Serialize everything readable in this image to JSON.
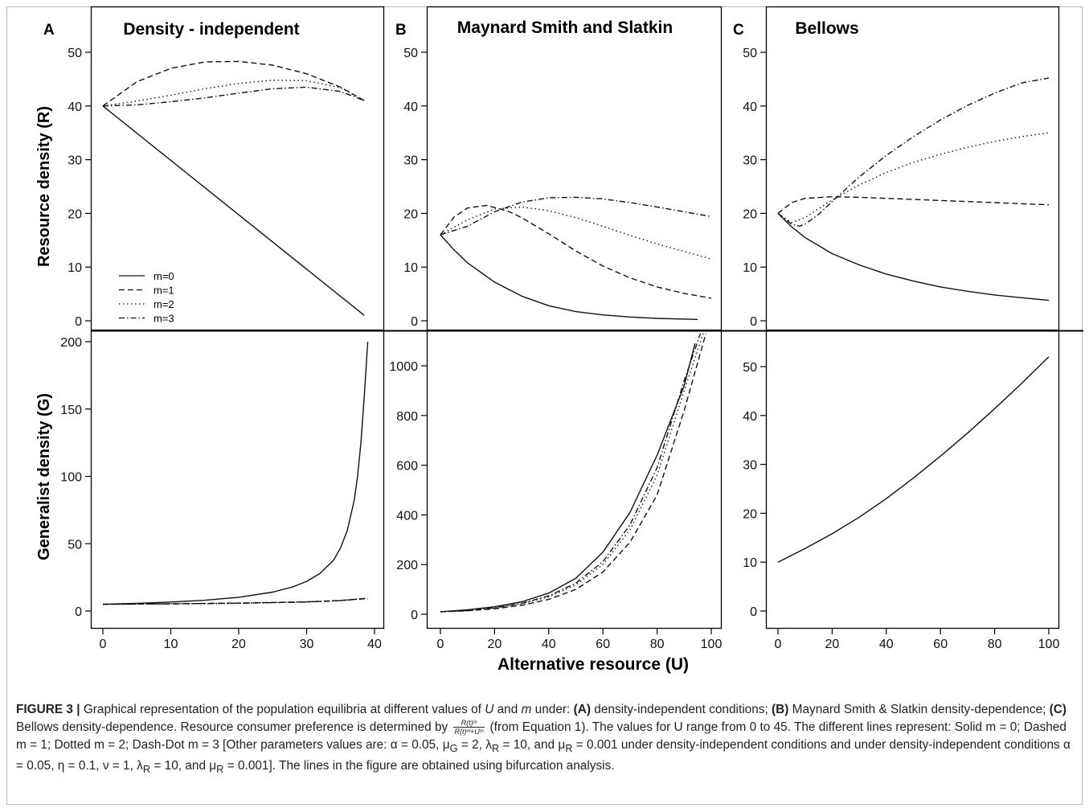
{
  "figure": {
    "legend": [
      "m=0",
      "m=1",
      "m=2",
      "m=3"
    ],
    "x_axis_label": "Alternative resource (U)",
    "y_axis_labels": {
      "top": "Resource density (R)",
      "bottom": "Generalist density (G)"
    }
  },
  "chart_data": [
    {
      "id": "A-top",
      "panel": "A",
      "title": "Density - independent",
      "type": "line",
      "ylabel": "Resource density (R)",
      "xlim": [
        0,
        40
      ],
      "ylim": [
        0,
        50
      ],
      "xticks": [
        0,
        10,
        20,
        30,
        40
      ],
      "yticks": [
        0,
        10,
        20,
        30,
        40,
        50
      ],
      "legend_position": "bottom-left",
      "series": [
        {
          "name": "m=0",
          "style": "solid",
          "x": [
            0,
            38.5
          ],
          "y": [
            40,
            1
          ]
        },
        {
          "name": "m=1",
          "style": "dashed",
          "x": [
            0,
            5,
            10,
            15,
            20,
            25,
            30,
            35,
            38.5
          ],
          "y": [
            40,
            44.5,
            47,
            48.2,
            48.3,
            47.6,
            46,
            43.5,
            41
          ]
        },
        {
          "name": "m=2",
          "style": "dotted",
          "x": [
            0,
            5,
            10,
            15,
            20,
            25,
            30,
            35,
            38.5
          ],
          "y": [
            40,
            40.9,
            42,
            43.2,
            44.2,
            44.8,
            44.7,
            43.4,
            41
          ]
        },
        {
          "name": "m=3",
          "style": "dashdot",
          "x": [
            0,
            5,
            10,
            15,
            20,
            25,
            30,
            35,
            38.5
          ],
          "y": [
            40,
            40.2,
            40.8,
            41.5,
            42.4,
            43.2,
            43.5,
            42.7,
            41
          ]
        }
      ]
    },
    {
      "id": "A-bottom",
      "panel": "A",
      "type": "line",
      "ylabel": "Generalist density (G)",
      "xlabel": "",
      "xlim": [
        0,
        40
      ],
      "ylim": [
        0,
        200
      ],
      "xticks": [
        0,
        10,
        20,
        30,
        40
      ],
      "yticks": [
        0,
        50,
        100,
        150,
        200
      ],
      "series": [
        {
          "name": "m=0",
          "style": "solid",
          "x": [
            0,
            5,
            10,
            15,
            20,
            25,
            28,
            30,
            32,
            34,
            35,
            36,
            37,
            37.5,
            38,
            38.5,
            39
          ],
          "y": [
            5,
            5.7,
            6.7,
            8,
            10.2,
            14,
            18,
            22,
            28,
            38,
            47,
            60,
            82,
            100,
            125,
            160,
            200
          ]
        },
        {
          "name": "m=1",
          "style": "dashed",
          "x": [
            0,
            10,
            20,
            30,
            35,
            39
          ],
          "y": [
            5,
            5.4,
            5.9,
            6.8,
            7.8,
            9.5
          ]
        },
        {
          "name": "m=2",
          "style": "dotted",
          "x": [
            0,
            10,
            20,
            30,
            35,
            39
          ],
          "y": [
            5,
            5.3,
            5.8,
            6.8,
            7.9,
            9.5
          ]
        },
        {
          "name": "m=3",
          "style": "dashdot",
          "x": [
            0,
            10,
            20,
            30,
            35,
            39
          ],
          "y": [
            5,
            5.3,
            5.8,
            6.7,
            7.7,
            9.3
          ]
        }
      ]
    },
    {
      "id": "B-top",
      "panel": "B",
      "title": "Maynard Smith and Slatkin",
      "type": "line",
      "xlim": [
        0,
        100
      ],
      "ylim": [
        0,
        50
      ],
      "xticks": [
        0,
        20,
        40,
        60,
        80,
        100
      ],
      "yticks": [
        0,
        10,
        20,
        30,
        40,
        50
      ],
      "series": [
        {
          "name": "m=0",
          "style": "solid",
          "x": [
            0,
            5,
            10,
            20,
            30,
            40,
            50,
            60,
            70,
            80,
            95
          ],
          "y": [
            16,
            13.2,
            10.8,
            7.2,
            4.6,
            2.8,
            1.7,
            1.1,
            0.7,
            0.45,
            0.25
          ]
        },
        {
          "name": "m=1",
          "style": "dashed",
          "x": [
            0,
            5,
            10,
            17,
            25,
            30,
            40,
            50,
            60,
            70,
            80,
            90,
            100
          ],
          "y": [
            16,
            19.3,
            21,
            21.5,
            20.4,
            19.2,
            16.2,
            13,
            10.2,
            8,
            6.3,
            5.1,
            4.2
          ]
        },
        {
          "name": "m=2",
          "style": "dotted",
          "x": [
            0,
            10,
            20,
            30,
            40,
            50,
            60,
            70,
            80,
            90,
            100
          ],
          "y": [
            16,
            18.8,
            20.8,
            21.2,
            20.5,
            19.2,
            17.6,
            15.9,
            14.3,
            12.9,
            11.5
          ]
        },
        {
          "name": "m=3",
          "style": "dashdot",
          "x": [
            0,
            10,
            20,
            30,
            40,
            50,
            60,
            70,
            80,
            90,
            100
          ],
          "y": [
            16,
            17.6,
            20.3,
            22.1,
            22.9,
            23,
            22.7,
            22,
            21.2,
            20.3,
            19.4
          ]
        }
      ]
    },
    {
      "id": "B-bottom",
      "panel": "B",
      "type": "line",
      "xlim": [
        0,
        100
      ],
      "ylim": [
        0,
        1100
      ],
      "xticks": [
        0,
        20,
        40,
        60,
        80,
        100
      ],
      "yticks": [
        0,
        200,
        400,
        600,
        800,
        1000
      ],
      "series": [
        {
          "name": "m=0",
          "style": "solid",
          "x": [
            0,
            10,
            20,
            30,
            40,
            50,
            60,
            70,
            80,
            90,
            94
          ],
          "y": [
            10,
            18,
            30,
            50,
            85,
            145,
            250,
            410,
            640,
            920,
            1090
          ]
        },
        {
          "name": "m=1",
          "style": "dashed",
          "x": [
            0,
            10,
            20,
            30,
            40,
            50,
            60,
            70,
            80,
            90,
            98
          ],
          "y": [
            10,
            14,
            22,
            36,
            60,
            100,
            170,
            290,
            480,
            820,
            1130
          ]
        },
        {
          "name": "m=2",
          "style": "dotted",
          "x": [
            0,
            10,
            20,
            30,
            40,
            50,
            60,
            70,
            80,
            90,
            97
          ],
          "y": [
            10,
            15,
            25,
            42,
            70,
            118,
            200,
            340,
            560,
            900,
            1130
          ]
        },
        {
          "name": "m=3",
          "style": "dashdot",
          "x": [
            0,
            10,
            20,
            30,
            40,
            50,
            60,
            70,
            80,
            90,
            96
          ],
          "y": [
            10,
            15,
            26,
            44,
            74,
            125,
            212,
            360,
            590,
            940,
            1130
          ]
        }
      ]
    },
    {
      "id": "C-top",
      "panel": "C",
      "title": "Bellows",
      "type": "line",
      "xlim": [
        0,
        100
      ],
      "ylim": [
        0,
        50
      ],
      "xticks": [
        0,
        20,
        40,
        60,
        80,
        100
      ],
      "yticks": [
        0,
        10,
        20,
        30,
        40,
        50
      ],
      "series": [
        {
          "name": "m=0",
          "style": "solid",
          "x": [
            0,
            5,
            10,
            20,
            30,
            40,
            50,
            60,
            70,
            80,
            90,
            100
          ],
          "y": [
            20,
            17.5,
            15.5,
            12.5,
            10.4,
            8.7,
            7.4,
            6.3,
            5.5,
            4.8,
            4.3,
            3.8
          ]
        },
        {
          "name": "m=1",
          "style": "dashed",
          "x": [
            0,
            5,
            10,
            20,
            30,
            40,
            50,
            60,
            70,
            80,
            90,
            100
          ],
          "y": [
            20,
            22,
            22.8,
            23.1,
            23,
            22.8,
            22.6,
            22.4,
            22.2,
            22,
            21.8,
            21.6
          ]
        },
        {
          "name": "m=2",
          "style": "dotted",
          "x": [
            0,
            5,
            10,
            20,
            30,
            40,
            50,
            60,
            70,
            80,
            90,
            100
          ],
          "y": [
            20,
            18.3,
            19.2,
            22.5,
            25.3,
            27.6,
            29.5,
            31,
            32.3,
            33.4,
            34.3,
            35
          ]
        },
        {
          "name": "m=3",
          "style": "dashdot",
          "x": [
            0,
            5,
            8,
            10,
            15,
            20,
            30,
            40,
            50,
            60,
            70,
            80,
            90,
            100
          ],
          "y": [
            20,
            18,
            17.6,
            18,
            19.8,
            22.2,
            26.8,
            30.8,
            34.3,
            37.4,
            40.1,
            42.4,
            44.3,
            45.2
          ]
        }
      ]
    },
    {
      "id": "C-bottom",
      "panel": "C",
      "type": "line",
      "xlim": [
        0,
        100
      ],
      "ylim": [
        0,
        55
      ],
      "xticks": [
        0,
        20,
        40,
        60,
        80,
        100
      ],
      "yticks": [
        0,
        10,
        20,
        30,
        40,
        50
      ],
      "series": [
        {
          "name": "m=0",
          "style": "solid",
          "x": [
            0,
            10,
            20,
            30,
            40,
            50,
            60,
            70,
            80,
            90,
            100
          ],
          "y": [
            10,
            12.8,
            15.8,
            19.2,
            23,
            27.2,
            31.7,
            36.4,
            41.4,
            46.6,
            52
          ]
        }
      ]
    }
  ],
  "caption": {
    "label": "FIGURE 3 |",
    "s1": " Graphical representation of the population equilibria at different values of ",
    "U": "U",
    "s2": " and ",
    "m": "m",
    "s3": " under: ",
    "a_label": "(A)",
    "s4": " density-independent conditions; ",
    "b_label": "(B)",
    "s5": " Maynard Smith & Slatkin density-dependence; ",
    "c_label": "(C)",
    "s6": " Bellows density-dependence. Resource consumer preference is determined by ",
    "frac_num": "R(t)ᵐ",
    "frac_den": "R(t)ᵐ+Uᵐ",
    "s7": " (from Equation 1). The values for U range from 0 to 45. The different lines represent: Solid m = 0; Dashed m = 1; Dotted m = 2; Dash-Dot m = 3 [Other parameters values are: α = 0.05, μ",
    "sub_G": "G",
    "s8": " = 2, λ",
    "sub_R1": "R",
    "s9": " = 10, and μ",
    "sub_R2": "R",
    "s10": " = 0.001 under density-independent conditions and under density-independent conditions α = 0.05, η = 0.1, ν = 1, λ",
    "sub_R3": "R",
    "s11": " = 10, and μ",
    "sub_R4": "R",
    "s12": " = 0.001]. The lines in the figure are obtained using bifurcation analysis."
  }
}
